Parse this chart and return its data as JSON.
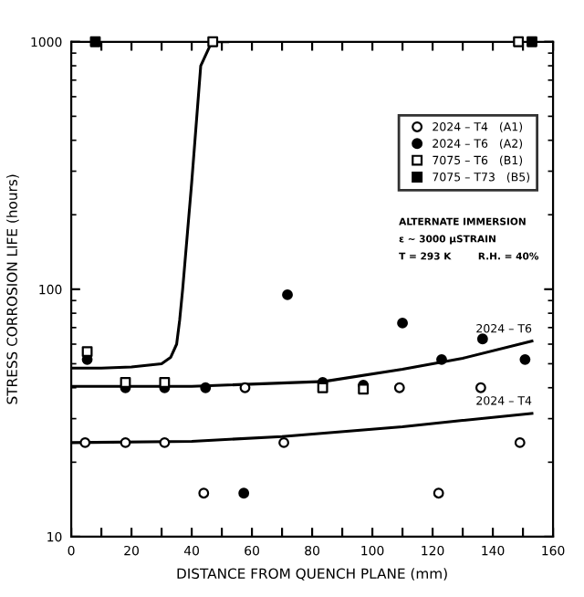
{
  "chart_data": {
    "type": "scatter",
    "xlabel": "DISTANCE FROM QUENCH PLANE (mm)",
    "ylabel": "STRESS CORROSION LIFE (hours)",
    "xlim": [
      0,
      160
    ],
    "ylim": [
      10,
      1000
    ],
    "log": "y",
    "xticks": [
      0,
      {
        "value": 10,
        "label": null
      },
      20,
      {
        "value": 30,
        "label": null
      },
      40,
      {
        "value": 50,
        "label": null
      },
      60,
      {
        "value": 70,
        "label": null
      },
      80,
      {
        "value": 90,
        "label": null
      },
      100,
      {
        "value": 110,
        "label": null
      },
      120,
      {
        "value": 130,
        "label": null
      },
      140,
      {
        "value": 150,
        "label": null
      },
      160
    ],
    "yticks": [
      10,
      100,
      1000
    ],
    "grid": false,
    "legend": "top right",
    "series": [
      {
        "name": "2024 – T4   (A1)",
        "marker": "circle",
        "color": "#ffffff",
        "x": [
          4.6,
          18,
          31,
          44,
          57.7,
          70.6,
          109,
          122,
          136,
          149
        ],
        "values": [
          24,
          24,
          24,
          15,
          40,
          24,
          40,
          15,
          40,
          24
        ]
      },
      {
        "name": "2024 – T6   (A2)",
        "marker": "circle",
        "color": "#000000",
        "x": [
          5.3,
          18,
          31,
          44.6,
          57.3,
          71.8,
          83.5,
          97,
          110,
          123,
          136.6,
          150.7
        ],
        "values": [
          52,
          40,
          40,
          40,
          15,
          95,
          42,
          41,
          73,
          52,
          63,
          52
        ]
      },
      {
        "name": "7075 – T6   (B1)",
        "marker": "square",
        "color": "#ffffff",
        "x": [
          5.3,
          18,
          31,
          47,
          83.5,
          97,
          148.5
        ],
        "values": [
          56,
          42,
          42,
          1000,
          40,
          39.5,
          1000
        ]
      },
      {
        "name": "7075 – T73   (B5)",
        "marker": "square",
        "color": "#000000",
        "x": [
          8,
          153
        ],
        "values": [
          1000,
          1000
        ]
      },
      {
        "type": "line",
        "color": "#000000",
        "x": [
          0,
          10,
          20,
          30,
          33,
          35,
          36,
          37,
          40,
          43,
          46,
          48,
          52
        ],
        "values": [
          48,
          48,
          48.5,
          50,
          53,
          60,
          75,
          100,
          270,
          800,
          960,
          1000,
          1000
        ]
      },
      {
        "name": "2024 – T6",
        "type": "line",
        "color": "#000000",
        "x": [
          0,
          40,
          84,
          110,
          130,
          153
        ],
        "values": [
          40.5,
          40.5,
          42.4,
          47.5,
          52.6,
          61.7
        ]
      },
      {
        "name": "2024 – T4",
        "type": "line",
        "color": "#000000",
        "x": [
          0,
          40,
          70,
          110,
          130,
          153
        ],
        "values": [
          24,
          24.3,
          25.4,
          27.8,
          29.5,
          31.5
        ]
      }
    ],
    "annotations": [
      "ALTERNATE IMMERSION",
      "ε ∼ 3000 μSTRAIN",
      "T = 293 K        R.H. = 40%"
    ]
  }
}
